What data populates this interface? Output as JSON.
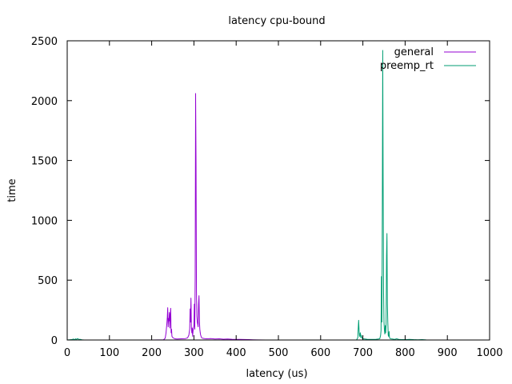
{
  "chart_data": {
    "type": "line",
    "title": "latency cpu-bound",
    "xlabel": "latency (us)",
    "ylabel": "time",
    "xlim": [
      0,
      1000
    ],
    "ylim": [
      0,
      2500
    ],
    "x_ticks": [
      0,
      100,
      200,
      300,
      400,
      500,
      600,
      700,
      800,
      900,
      1000
    ],
    "y_ticks": [
      0,
      500,
      1000,
      1500,
      2000,
      2500
    ],
    "legend_position": "top-right",
    "grid": false,
    "series": [
      {
        "name": "general",
        "color": "#9400d3",
        "points": [
          [
            0,
            0
          ],
          [
            200,
            0
          ],
          [
            228,
            2
          ],
          [
            232,
            15
          ],
          [
            234,
            60
          ],
          [
            236,
            140
          ],
          [
            237,
            190
          ],
          [
            238,
            270
          ],
          [
            239,
            110
          ],
          [
            240,
            180
          ],
          [
            241,
            160
          ],
          [
            242,
            230
          ],
          [
            243,
            100
          ],
          [
            244,
            210
          ],
          [
            245,
            265
          ],
          [
            246,
            60
          ],
          [
            247,
            90
          ],
          [
            248,
            30
          ],
          [
            250,
            20
          ],
          [
            255,
            10
          ],
          [
            260,
            8
          ],
          [
            270,
            10
          ],
          [
            280,
            12
          ],
          [
            285,
            18
          ],
          [
            288,
            40
          ],
          [
            290,
            90
          ],
          [
            291,
            260
          ],
          [
            292,
            150
          ],
          [
            293,
            350
          ],
          [
            294,
            110
          ],
          [
            295,
            60
          ],
          [
            296,
            100
          ],
          [
            297,
            30
          ],
          [
            298,
            80
          ],
          [
            300,
            120
          ],
          [
            301,
            300
          ],
          [
            302,
            90
          ],
          [
            303,
            520
          ],
          [
            304,
            2060
          ],
          [
            305,
            1480
          ],
          [
            306,
            400
          ],
          [
            307,
            200
          ],
          [
            308,
            150
          ],
          [
            309,
            130
          ],
          [
            310,
            110
          ],
          [
            311,
            300
          ],
          [
            312,
            370
          ],
          [
            313,
            160
          ],
          [
            314,
            90
          ],
          [
            315,
            60
          ],
          [
            316,
            40
          ],
          [
            318,
            20
          ],
          [
            320,
            15
          ],
          [
            325,
            12
          ],
          [
            330,
            10
          ],
          [
            340,
            12
          ],
          [
            350,
            8
          ],
          [
            360,
            10
          ],
          [
            370,
            7
          ],
          [
            380,
            8
          ],
          [
            390,
            6
          ],
          [
            400,
            5
          ],
          [
            410,
            5
          ],
          [
            420,
            4
          ],
          [
            430,
            3
          ],
          [
            440,
            2
          ],
          [
            450,
            1
          ],
          [
            470,
            0
          ],
          [
            1000,
            0
          ]
        ]
      },
      {
        "name": "preemp_rt",
        "color": "#009e73",
        "points": [
          [
            0,
            0
          ],
          [
            10,
            3
          ],
          [
            15,
            8
          ],
          [
            18,
            2
          ],
          [
            20,
            10
          ],
          [
            22,
            5
          ],
          [
            25,
            12
          ],
          [
            28,
            3
          ],
          [
            30,
            6
          ],
          [
            35,
            2
          ],
          [
            40,
            0
          ],
          [
            685,
            0
          ],
          [
            688,
            20
          ],
          [
            689,
            100
          ],
          [
            690,
            165
          ],
          [
            691,
            80
          ],
          [
            692,
            30
          ],
          [
            694,
            60
          ],
          [
            695,
            20
          ],
          [
            696,
            40
          ],
          [
            698,
            15
          ],
          [
            700,
            10
          ],
          [
            705,
            8
          ],
          [
            710,
            6
          ],
          [
            720,
            5
          ],
          [
            730,
            5
          ],
          [
            740,
            10
          ],
          [
            742,
            40
          ],
          [
            743,
            80
          ],
          [
            744,
            530
          ],
          [
            745,
            150
          ],
          [
            746,
            1070
          ],
          [
            747,
            2420
          ],
          [
            748,
            1290
          ],
          [
            749,
            400
          ],
          [
            750,
            150
          ],
          [
            751,
            80
          ],
          [
            752,
            50
          ],
          [
            753,
            120
          ],
          [
            754,
            60
          ],
          [
            755,
            130
          ],
          [
            756,
            700
          ],
          [
            757,
            890
          ],
          [
            758,
            300
          ],
          [
            759,
            150
          ],
          [
            760,
            40
          ],
          [
            761,
            30
          ],
          [
            762,
            70
          ],
          [
            763,
            20
          ],
          [
            764,
            15
          ],
          [
            765,
            10
          ],
          [
            770,
            8
          ],
          [
            775,
            5
          ],
          [
            780,
            10
          ],
          [
            785,
            5
          ],
          [
            790,
            4
          ],
          [
            800,
            3
          ],
          [
            810,
            5
          ],
          [
            820,
            3
          ],
          [
            830,
            2
          ],
          [
            840,
            3
          ],
          [
            850,
            1
          ],
          [
            860,
            0
          ],
          [
            1000,
            0
          ]
        ]
      }
    ]
  }
}
